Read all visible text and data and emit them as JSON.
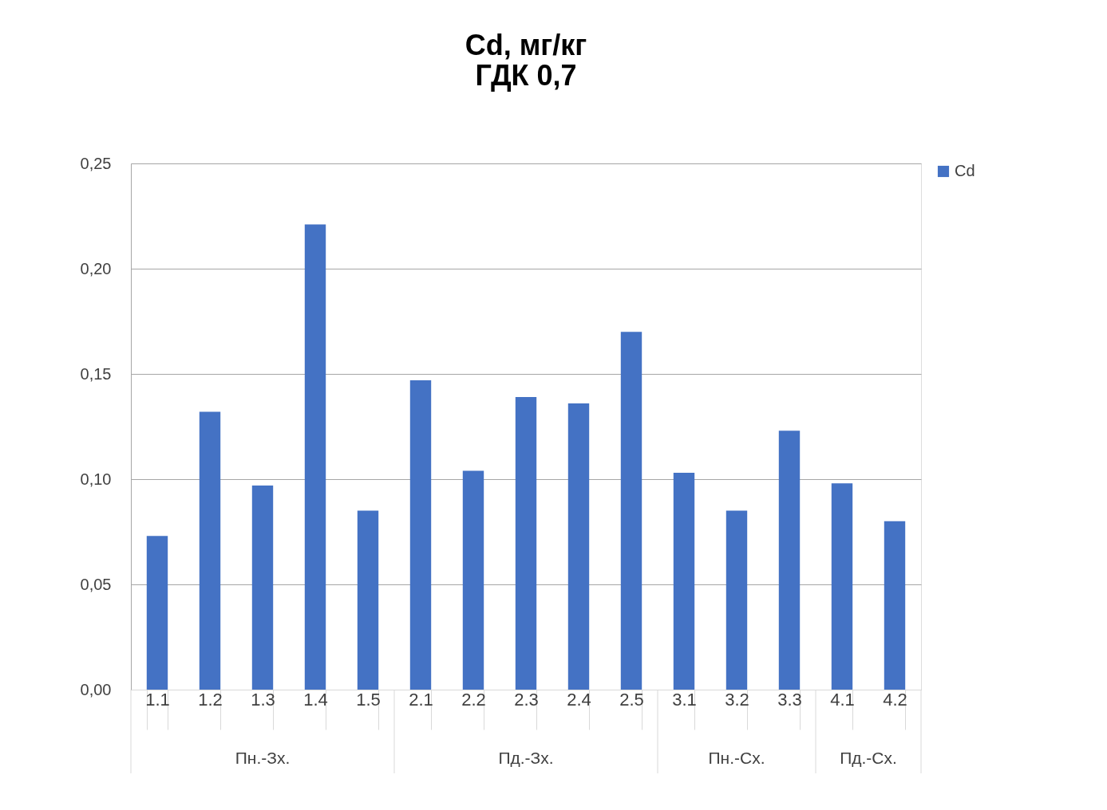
{
  "chart_data": {
    "type": "bar",
    "title": "Cd, мг/кг\nГДК 0,7",
    "categories": [
      "1.1",
      "1.2",
      "1.3",
      "1.4",
      "1.5",
      "2.1",
      "2.2",
      "2.3",
      "2.4",
      "2.5",
      "3.1",
      "3.2",
      "3.3",
      "4.1",
      "4.2"
    ],
    "series": [
      {
        "name": "Cd",
        "color": "#4472c4",
        "values": [
          0.073,
          0.132,
          0.097,
          0.221,
          0.085,
          0.147,
          0.104,
          0.139,
          0.136,
          0.17,
          0.103,
          0.085,
          0.123,
          0.098,
          0.08
        ]
      }
    ],
    "ylim": [
      0,
      0.25
    ],
    "yticks": [
      {
        "value": 0,
        "label": "0,00"
      },
      {
        "value": 0.05,
        "label": "0,05"
      },
      {
        "value": 0.1,
        "label": "0,10"
      },
      {
        "value": 0.15,
        "label": "0,15"
      },
      {
        "value": 0.2,
        "label": "0,20"
      },
      {
        "value": 0.25,
        "label": "0,25"
      }
    ],
    "grid": "y",
    "legend": "right",
    "annotations": [
      "Пн.-Зх.",
      "Пд.-Зх.",
      "Пн.-Сх.",
      "Пд.-Сх."
    ]
  }
}
